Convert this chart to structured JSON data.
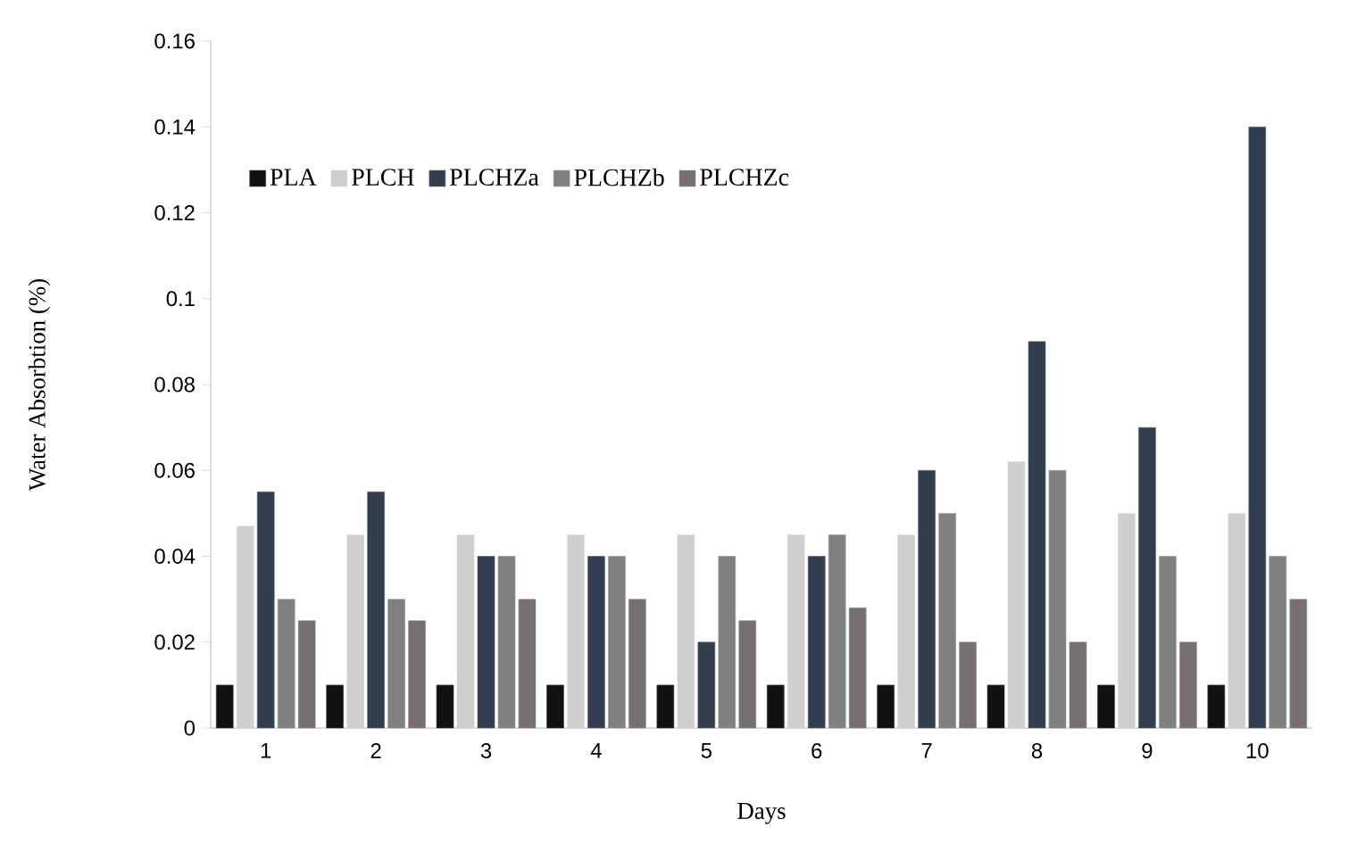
{
  "chart_data": {
    "type": "bar",
    "xlabel": "Days",
    "ylabel": "Water Absorbtion (%)",
    "categories": [
      "1",
      "2",
      "3",
      "4",
      "5",
      "6",
      "7",
      "8",
      "9",
      "10"
    ],
    "series": [
      {
        "name": "PLA",
        "color": "#111111",
        "values": [
          0.01,
          0.01,
          0.01,
          0.01,
          0.01,
          0.01,
          0.01,
          0.01,
          0.01,
          0.01
        ]
      },
      {
        "name": "PLCH",
        "color": "#d0cfd0",
        "values": [
          0.047,
          0.045,
          0.045,
          0.045,
          0.045,
          0.045,
          0.045,
          0.062,
          0.05,
          0.05
        ]
      },
      {
        "name": "PLCHZa",
        "color": "#333d50",
        "values": [
          0.055,
          0.055,
          0.04,
          0.04,
          0.02,
          0.04,
          0.06,
          0.09,
          0.07,
          0.14
        ]
      },
      {
        "name": "PLCHZb",
        "color": "#808080",
        "values": [
          0.03,
          0.03,
          0.04,
          0.04,
          0.04,
          0.045,
          0.05,
          0.06,
          0.04,
          0.04
        ]
      },
      {
        "name": "PLCHZc",
        "color": "#767170",
        "values": [
          0.025,
          0.025,
          0.03,
          0.03,
          0.025,
          0.028,
          0.02,
          0.02,
          0.02,
          0.03
        ]
      }
    ],
    "ylim": [
      0,
      0.16
    ],
    "yticks": [
      0,
      0.02,
      0.04,
      0.06,
      0.08,
      0.1,
      0.12,
      0.14,
      0.16
    ],
    "grid": false,
    "legend": "top left"
  }
}
